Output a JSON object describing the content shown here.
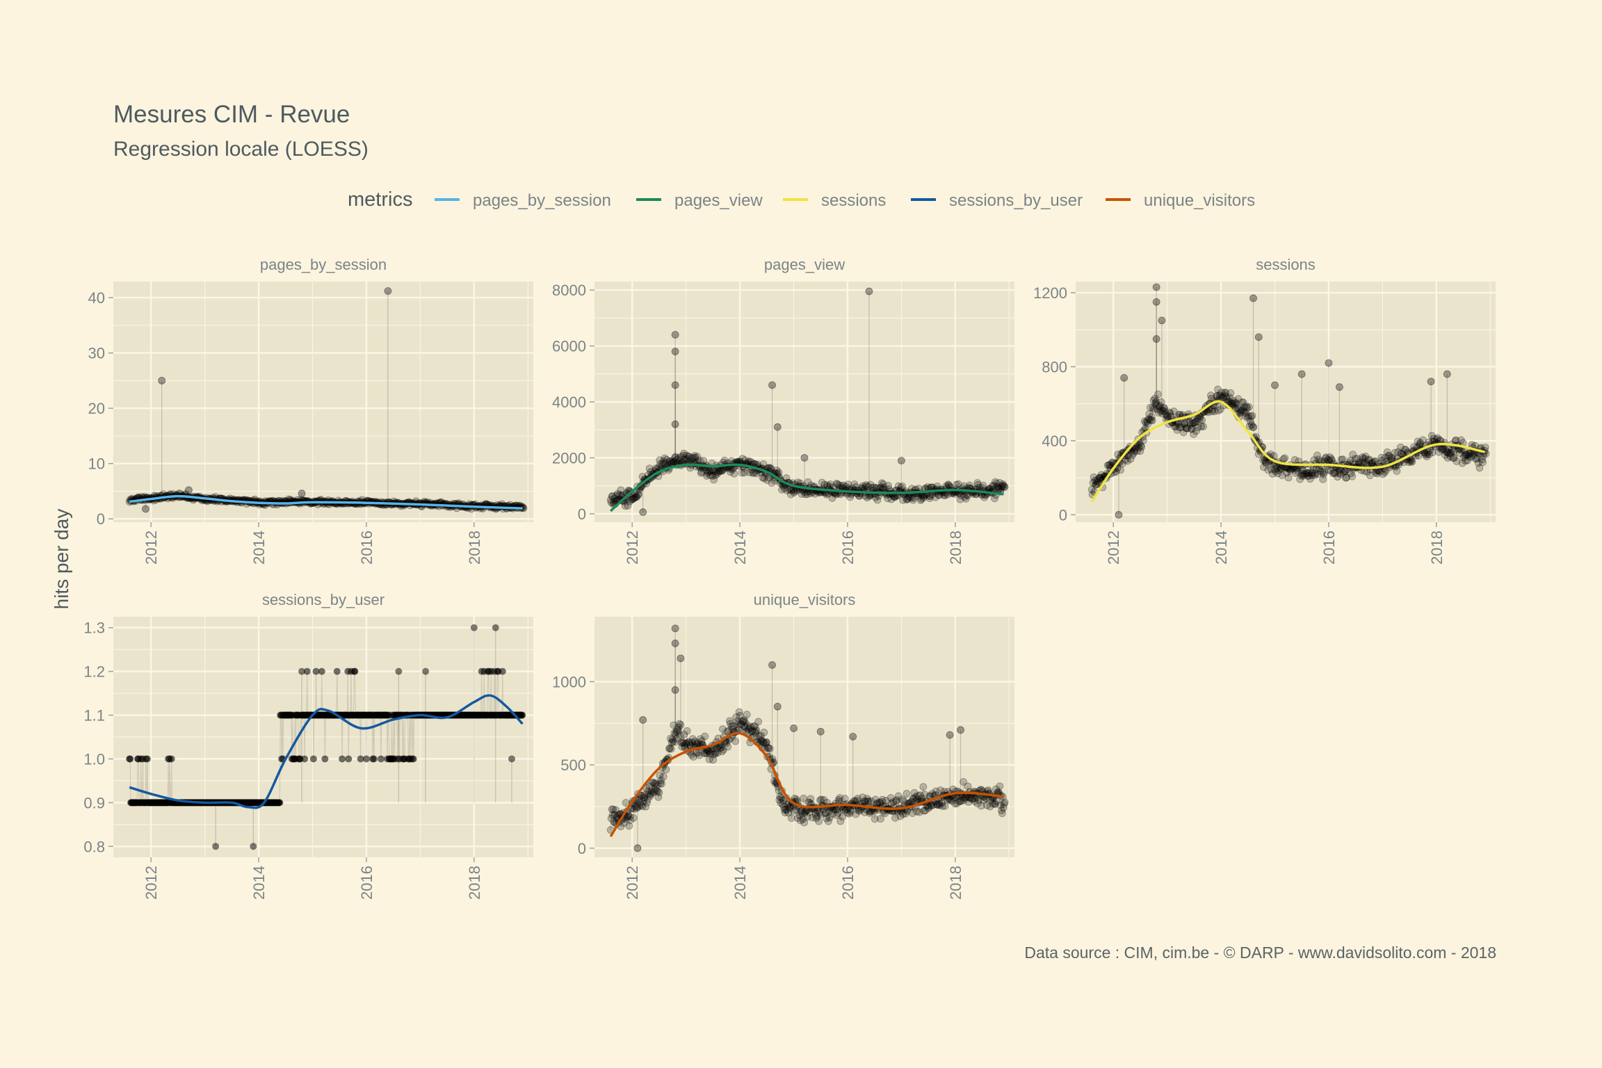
{
  "chart_data": {
    "type": "scatter",
    "title": "Mesures CIM - Revue",
    "subtitle": "Regression locale (LOESS)",
    "ylabel": "hits per day",
    "caption": "Data source : CIM, cim.be - © DARP - www.davidsolito.com - 2018",
    "colors": {
      "background": "#fcf4de",
      "panel": "#ebe4cc",
      "grid": "#fbf6e6",
      "points": "#1a1a1a"
    },
    "legend": {
      "title": "metrics",
      "position": "top",
      "items": [
        {
          "label": "pages_by_session",
          "color": "#56b4e9"
        },
        {
          "label": "pages_view",
          "color": "#1b8a5a"
        },
        {
          "label": "sessions",
          "color": "#f0e442"
        },
        {
          "label": "sessions_by_user",
          "color": "#1459a0"
        },
        {
          "label": "unique_visitors",
          "color": "#c85200"
        }
      ]
    },
    "panels": [
      {
        "name": "pages_by_session",
        "color": "#56b4e9",
        "xlim": [
          2011.3,
          2019.1
        ],
        "ylim": [
          -0.6,
          42.9
        ],
        "xticks": [
          {
            "v": 2012,
            "label": "2012"
          },
          {
            "v": 2014,
            "label": "2014"
          },
          {
            "v": 2016,
            "label": "2016"
          },
          {
            "v": 2018,
            "label": "2018"
          }
        ],
        "yticks": [
          {
            "v": 0,
            "label": "0"
          },
          {
            "v": 10,
            "label": "10"
          },
          {
            "v": 20,
            "label": "20"
          },
          {
            "v": 30,
            "label": "30"
          },
          {
            "v": 40,
            "label": "40"
          }
        ],
        "loess": [
          [
            2011.6,
            3.1
          ],
          [
            2012.0,
            3.6
          ],
          [
            2012.5,
            4.1
          ],
          [
            2013.0,
            3.7
          ],
          [
            2013.5,
            3.2
          ],
          [
            2014.0,
            2.9
          ],
          [
            2014.5,
            2.8
          ],
          [
            2015.0,
            3.0
          ],
          [
            2016.0,
            2.9
          ],
          [
            2017.0,
            2.6
          ],
          [
            2018.0,
            2.2
          ],
          [
            2018.9,
            1.9
          ]
        ],
        "base": [
          [
            2011.6,
            3.4
          ],
          [
            2012.5,
            4.2
          ],
          [
            2013.0,
            3.6
          ],
          [
            2014.0,
            3.0
          ],
          [
            2015.0,
            3.1
          ],
          [
            2016.0,
            2.9
          ],
          [
            2017.0,
            2.7
          ],
          [
            2018.0,
            2.3
          ],
          [
            2018.9,
            2.1
          ]
        ],
        "noise": 0.35,
        "spikes": [
          [
            2012.2,
            25.0
          ],
          [
            2016.4,
            41.2
          ],
          [
            2012.7,
            5.2
          ],
          [
            2011.9,
            1.8
          ],
          [
            2014.8,
            4.6
          ]
        ]
      },
      {
        "name": "pages_view",
        "color": "#1b8a5a",
        "xlim": [
          2011.3,
          2019.1
        ],
        "ylim": [
          -300,
          8300
        ],
        "xticks": [
          {
            "v": 2012,
            "label": "2012"
          },
          {
            "v": 2014,
            "label": "2014"
          },
          {
            "v": 2016,
            "label": "2016"
          },
          {
            "v": 2018,
            "label": "2018"
          }
        ],
        "yticks": [
          {
            "v": 0,
            "label": "0"
          },
          {
            "v": 2000,
            "label": "2000"
          },
          {
            "v": 4000,
            "label": "4000"
          },
          {
            "v": 6000,
            "label": "6000"
          },
          {
            "v": 8000,
            "label": "8000"
          }
        ],
        "loess": [
          [
            2011.6,
            100
          ],
          [
            2012.0,
            800
          ],
          [
            2012.5,
            1500
          ],
          [
            2013.0,
            1750
          ],
          [
            2013.5,
            1700
          ],
          [
            2014.0,
            1750
          ],
          [
            2014.5,
            1500
          ],
          [
            2015.0,
            1000
          ],
          [
            2016.0,
            800
          ],
          [
            2017.0,
            750
          ],
          [
            2018.0,
            850
          ],
          [
            2018.9,
            700
          ]
        ],
        "base": [
          [
            2011.6,
            500
          ],
          [
            2012.0,
            600
          ],
          [
            2012.5,
            1700
          ],
          [
            2013.0,
            2000
          ],
          [
            2013.5,
            1500
          ],
          [
            2014.0,
            1800
          ],
          [
            2014.5,
            1500
          ],
          [
            2015.0,
            900
          ],
          [
            2016.0,
            800
          ],
          [
            2017.0,
            700
          ],
          [
            2018.0,
            800
          ],
          [
            2018.9,
            850
          ]
        ],
        "noise": 230,
        "spikes": [
          [
            2012.8,
            6400
          ],
          [
            2012.8,
            5800
          ],
          [
            2012.8,
            4600
          ],
          [
            2012.8,
            3200
          ],
          [
            2014.6,
            4600
          ],
          [
            2016.4,
            7950
          ],
          [
            2012.2,
            60
          ],
          [
            2014.7,
            3100
          ],
          [
            2015.2,
            2000
          ],
          [
            2017.0,
            1900
          ]
        ]
      },
      {
        "name": "sessions",
        "color": "#f0e442",
        "xlim": [
          2011.3,
          2019.1
        ],
        "ylim": [
          -40,
          1260
        ],
        "xticks": [
          {
            "v": 2012,
            "label": "2012"
          },
          {
            "v": 2014,
            "label": "2014"
          },
          {
            "v": 2016,
            "label": "2016"
          },
          {
            "v": 2018,
            "label": "2018"
          }
        ],
        "yticks": [
          {
            "v": 0,
            "label": "0"
          },
          {
            "v": 400,
            "label": "400"
          },
          {
            "v": 800,
            "label": "800"
          },
          {
            "v": 1200,
            "label": "1200"
          }
        ],
        "loess": [
          [
            2011.6,
            70
          ],
          [
            2012.0,
            250
          ],
          [
            2012.5,
            420
          ],
          [
            2013.0,
            500
          ],
          [
            2013.5,
            540
          ],
          [
            2014.0,
            610
          ],
          [
            2014.5,
            450
          ],
          [
            2015.0,
            290
          ],
          [
            2016.0,
            270
          ],
          [
            2017.0,
            260
          ],
          [
            2018.0,
            380
          ],
          [
            2018.9,
            340
          ]
        ],
        "base": [
          [
            2011.6,
            150
          ],
          [
            2012.0,
            260
          ],
          [
            2012.5,
            380
          ],
          [
            2012.8,
            620
          ],
          [
            2013.0,
            520
          ],
          [
            2013.5,
            480
          ],
          [
            2014.0,
            640
          ],
          [
            2014.5,
            560
          ],
          [
            2014.8,
            280
          ],
          [
            2015.5,
            240
          ],
          [
            2016.0,
            260
          ],
          [
            2017.0,
            270
          ],
          [
            2018.0,
            370
          ],
          [
            2018.9,
            320
          ]
        ],
        "noise": 45,
        "spikes": [
          [
            2012.8,
            1230
          ],
          [
            2012.8,
            1150
          ],
          [
            2012.9,
            1050
          ],
          [
            2012.8,
            950
          ],
          [
            2012.2,
            740
          ],
          [
            2014.6,
            1170
          ],
          [
            2014.7,
            960
          ],
          [
            2015.0,
            700
          ],
          [
            2015.5,
            760
          ],
          [
            2016.0,
            820
          ],
          [
            2016.2,
            690
          ],
          [
            2017.9,
            720
          ],
          [
            2018.2,
            760
          ],
          [
            2012.1,
            0
          ]
        ]
      },
      {
        "name": "sessions_by_user",
        "color": "#1459a0",
        "xlim": [
          2011.3,
          2019.1
        ],
        "ylim": [
          0.775,
          1.325
        ],
        "xticks": [
          {
            "v": 2012,
            "label": "2012"
          },
          {
            "v": 2014,
            "label": "2014"
          },
          {
            "v": 2016,
            "label": "2016"
          },
          {
            "v": 2018,
            "label": "2018"
          }
        ],
        "yticks": [
          {
            "v": 0.8,
            "label": "0.8"
          },
          {
            "v": 0.9,
            "label": "0.9"
          },
          {
            "v": 1.0,
            "label": "1.0"
          },
          {
            "v": 1.1,
            "label": "1.1"
          },
          {
            "v": 1.2,
            "label": "1.2"
          },
          {
            "v": 1.3,
            "label": "1.3"
          }
        ],
        "loess": [
          [
            2011.6,
            0.935
          ],
          [
            2012.0,
            0.92
          ],
          [
            2012.5,
            0.905
          ],
          [
            2013.0,
            0.9
          ],
          [
            2013.5,
            0.9
          ],
          [
            2013.8,
            0.89
          ],
          [
            2014.1,
            0.9
          ],
          [
            2014.5,
            1.0
          ],
          [
            2015.0,
            1.1
          ],
          [
            2015.3,
            1.11
          ],
          [
            2015.9,
            1.07
          ],
          [
            2016.5,
            1.09
          ],
          [
            2017.0,
            1.1
          ],
          [
            2017.5,
            1.095
          ],
          [
            2018.0,
            1.13
          ],
          [
            2018.3,
            1.145
          ],
          [
            2018.6,
            1.12
          ],
          [
            2018.9,
            1.08
          ]
        ],
        "levels": [
          {
            "y": 0.9,
            "from": 2011.6,
            "to": 2014.4
          },
          {
            "y": 1.0,
            "from": 2011.6,
            "to": 2012.4
          },
          {
            "y": 1.1,
            "from": 2014.4,
            "to": 2018.9
          },
          {
            "y": 1.0,
            "from": 2014.4,
            "to": 2016.9
          },
          {
            "y": 1.2,
            "from": 2014.8,
            "to": 2015.8
          },
          {
            "y": 1.2,
            "from": 2017.9,
            "to": 2018.6
          }
        ],
        "spikes": [
          [
            2013.2,
            0.8
          ],
          [
            2013.9,
            0.8
          ],
          [
            2017.1,
            1.2
          ],
          [
            2018.0,
            1.3
          ],
          [
            2018.4,
            1.3
          ],
          [
            2018.7,
            1.0
          ],
          [
            2014.8,
            1.2
          ],
          [
            2016.6,
            1.2
          ]
        ]
      },
      {
        "name": "unique_visitors",
        "color": "#c85200",
        "xlim": [
          2011.3,
          2019.1
        ],
        "ylim": [
          -55,
          1390
        ],
        "xticks": [
          {
            "v": 2012,
            "label": "2012"
          },
          {
            "v": 2014,
            "label": "2014"
          },
          {
            "v": 2016,
            "label": "2016"
          },
          {
            "v": 2018,
            "label": "2018"
          }
        ],
        "yticks": [
          {
            "v": 0,
            "label": "0"
          },
          {
            "v": 500,
            "label": "500"
          },
          {
            "v": 1000,
            "label": "1000"
          }
        ],
        "loess": [
          [
            2011.6,
            70
          ],
          [
            2012.0,
            280
          ],
          [
            2012.5,
            480
          ],
          [
            2013.0,
            580
          ],
          [
            2013.5,
            620
          ],
          [
            2014.0,
            690
          ],
          [
            2014.5,
            550
          ],
          [
            2015.0,
            270
          ],
          [
            2016.0,
            260
          ],
          [
            2017.0,
            240
          ],
          [
            2018.0,
            330
          ],
          [
            2018.9,
            310
          ]
        ],
        "base": [
          [
            2011.6,
            160
          ],
          [
            2012.0,
            220
          ],
          [
            2012.5,
            380
          ],
          [
            2012.8,
            720
          ],
          [
            2013.0,
            620
          ],
          [
            2013.5,
            560
          ],
          [
            2014.0,
            760
          ],
          [
            2014.5,
            620
          ],
          [
            2014.8,
            250
          ],
          [
            2015.5,
            230
          ],
          [
            2016.0,
            250
          ],
          [
            2017.0,
            250
          ],
          [
            2018.0,
            320
          ],
          [
            2018.9,
            290
          ]
        ],
        "noise": 55,
        "spikes": [
          [
            2012.8,
            1320
          ],
          [
            2012.8,
            1230
          ],
          [
            2012.9,
            1140
          ],
          [
            2012.8,
            950
          ],
          [
            2012.2,
            770
          ],
          [
            2014.6,
            1100
          ],
          [
            2014.7,
            850
          ],
          [
            2015.0,
            720
          ],
          [
            2015.5,
            700
          ],
          [
            2016.1,
            670
          ],
          [
            2017.9,
            680
          ],
          [
            2018.1,
            710
          ],
          [
            2012.1,
            0
          ]
        ]
      }
    ]
  }
}
